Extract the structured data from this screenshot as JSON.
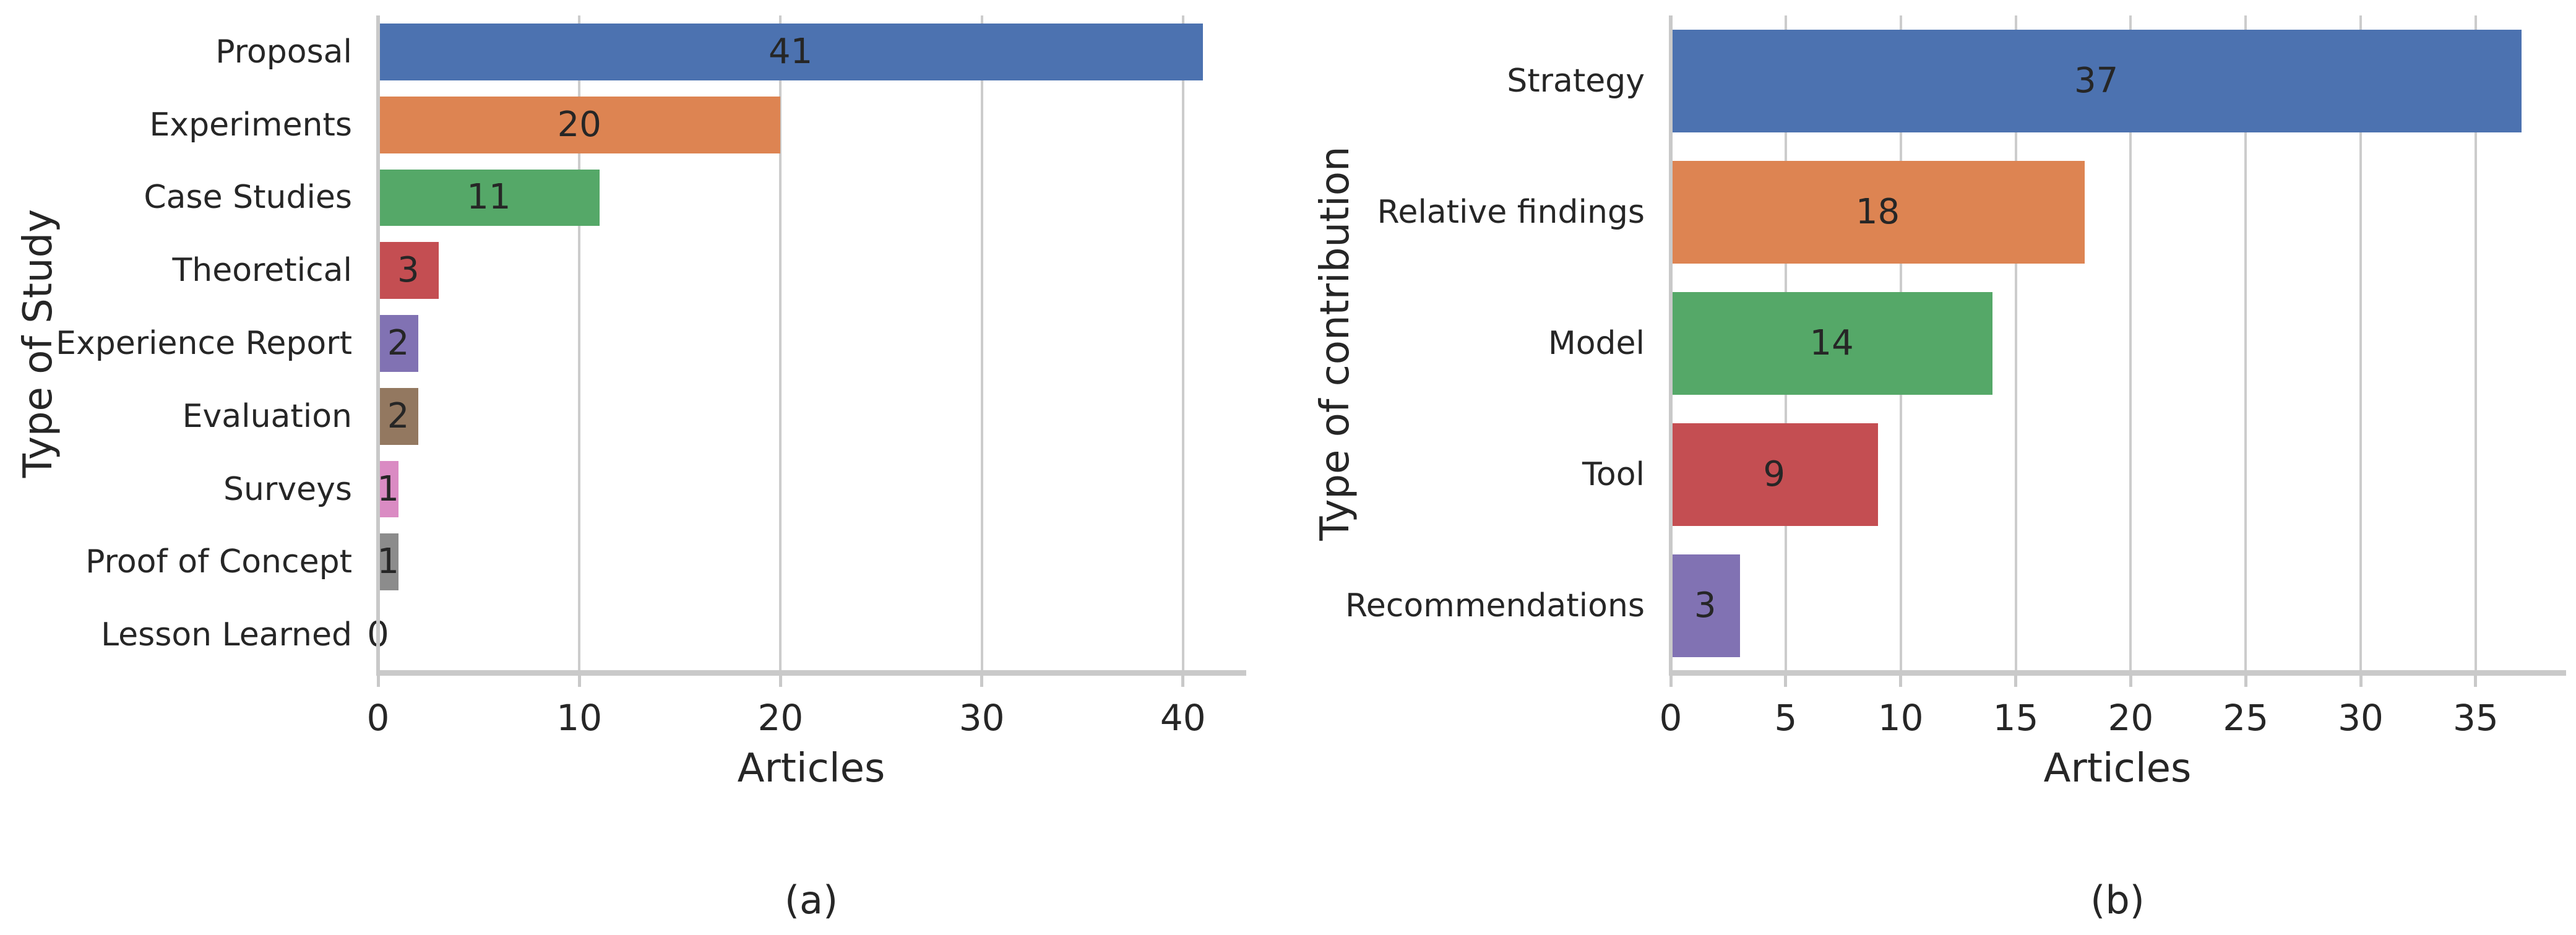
{
  "figure_caption_left": "(a)",
  "figure_caption_right": "(b)",
  "chart_data": [
    {
      "type": "bar",
      "orientation": "horizontal",
      "title": "",
      "xlabel": "Articles",
      "ylabel": "Type of Study",
      "caption": "(a)",
      "categories": [
        "Proposal",
        "Experiments",
        "Case Studies",
        "Theoretical",
        "Experience Report",
        "Evaluation",
        "Surveys",
        "Proof of Concept",
        "Lesson Learned"
      ],
      "values": [
        41,
        20,
        11,
        3,
        2,
        2,
        1,
        1,
        0
      ],
      "bar_labels": [
        "41",
        "20",
        "11",
        "3",
        "2",
        "2",
        "1",
        "1",
        "0"
      ],
      "colors": [
        "#4C72B0",
        "#DD8452",
        "#55A868",
        "#C44E52",
        "#8172B3",
        "#937860",
        "#DA8BC3",
        "#8C8C8C",
        "#CCB974"
      ],
      "xticks": [
        0,
        10,
        20,
        30,
        40
      ],
      "xlim": [
        0,
        43.05
      ],
      "grid": "vertical-major",
      "legend": "none",
      "grid_color": "#cccccc",
      "text_color": "#262626"
    },
    {
      "type": "bar",
      "orientation": "horizontal",
      "title": "",
      "xlabel": "Articles",
      "ylabel": "Type of contribution",
      "caption": "(b)",
      "categories": [
        "Strategy",
        "Relative findings",
        "Model",
        "Tool",
        "Recommendations"
      ],
      "values": [
        37,
        18,
        14,
        9,
        3
      ],
      "bar_labels": [
        "37",
        "18",
        "14",
        "9",
        "3"
      ],
      "colors": [
        "#4C72B0",
        "#DD8452",
        "#55A868",
        "#C44E52",
        "#8172B3"
      ],
      "xticks": [
        0,
        5,
        10,
        15,
        20,
        25,
        30,
        35
      ],
      "xlim": [
        0,
        38.85
      ],
      "grid": "vertical-major",
      "legend": "none",
      "grid_color": "#cccccc",
      "text_color": "#262626"
    }
  ]
}
